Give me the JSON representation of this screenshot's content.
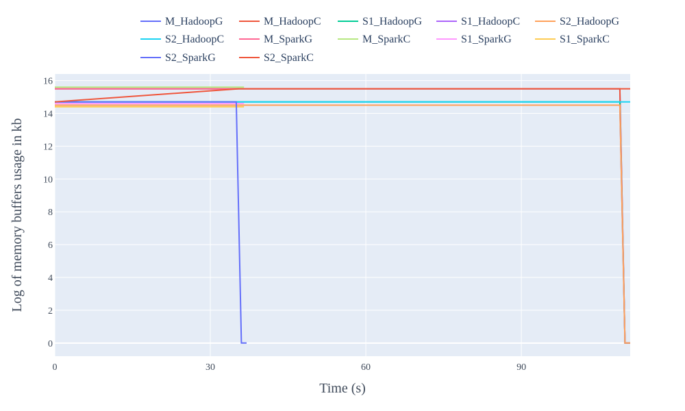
{
  "chart_data": {
    "type": "line",
    "xlabel": "Time (s)",
    "ylabel": "Log of memory buffers usage in kb",
    "xlim": [
      0,
      111
    ],
    "ylim": [
      -0.8,
      16.4
    ],
    "xticks": [
      0,
      30,
      60,
      90
    ],
    "yticks": [
      0,
      2,
      4,
      6,
      8,
      10,
      12,
      14,
      16
    ],
    "grid": true,
    "legend_position": "top",
    "series": [
      {
        "name": "M_HadoopG",
        "color": "#636efa",
        "x": [
          0,
          109,
          110,
          111
        ],
        "y": [
          15.5,
          15.5,
          0,
          0
        ]
      },
      {
        "name": "M_HadoopC",
        "color": "#ef553b",
        "x": [
          0,
          109,
          110,
          111
        ],
        "y": [
          15.5,
          15.5,
          0,
          0
        ]
      },
      {
        "name": "S1_HadoopG",
        "color": "#00cc96",
        "x": [
          0,
          109,
          110,
          111
        ],
        "y": [
          14.7,
          14.7,
          0,
          0
        ]
      },
      {
        "name": "S1_HadoopC",
        "color": "#ab63fa",
        "x": [
          0,
          109,
          110,
          111
        ],
        "y": [
          14.5,
          14.5,
          0,
          0
        ]
      },
      {
        "name": "S2_HadoopG",
        "color": "#ffa15a",
        "x": [
          0,
          109,
          110,
          111
        ],
        "y": [
          14.5,
          14.5,
          0,
          0
        ]
      },
      {
        "name": "S2_HadoopC",
        "color": "#19d3f3",
        "x": [
          0,
          111
        ],
        "y": [
          14.7,
          14.7
        ]
      },
      {
        "name": "M_SparkG",
        "color": "#ff6692",
        "x": [
          0,
          35.2
        ],
        "y": [
          15.5,
          15.5
        ]
      },
      {
        "name": "M_SparkC",
        "color": "#b6e880",
        "x": [
          0,
          36.5
        ],
        "y": [
          15.6,
          15.6
        ]
      },
      {
        "name": "S1_SparkG",
        "color": "#ff97ff",
        "x": [
          0,
          36.5
        ],
        "y": [
          14.6,
          14.6
        ]
      },
      {
        "name": "S1_SparkC",
        "color": "#fecb52",
        "x": [
          0,
          36.5
        ],
        "y": [
          14.4,
          14.4
        ]
      },
      {
        "name": "S2_SparkG",
        "color": "#636efa",
        "x": [
          0,
          35,
          36,
          37
        ],
        "y": [
          14.7,
          14.7,
          0,
          0
        ]
      },
      {
        "name": "S2_SparkC",
        "color": "#ef553b",
        "x": [
          0,
          35.5,
          111
        ],
        "y": [
          14.7,
          15.5,
          15.5
        ]
      }
    ]
  }
}
